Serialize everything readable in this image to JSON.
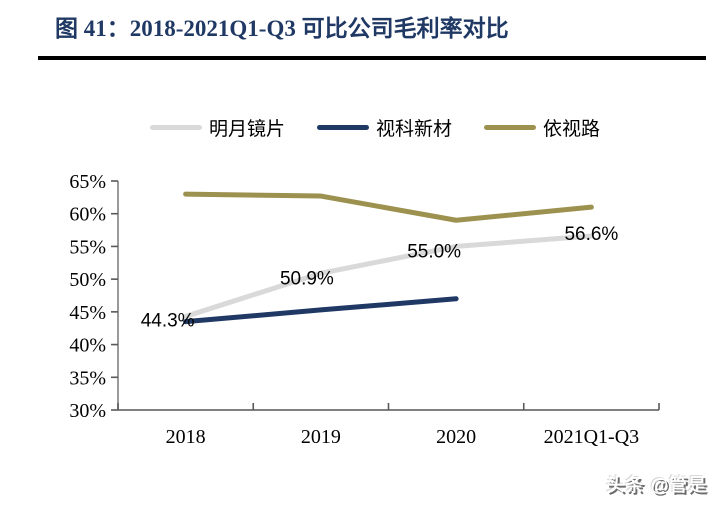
{
  "header": {
    "title": "图 41：2018-2021Q1-Q3 可比公司毛利率对比"
  },
  "watermark": "头条 @管是",
  "colors": {
    "title": "#1f3864",
    "axis_line": "#808080",
    "tick": "#595959",
    "rule": "#000000",
    "label_text": "#000000"
  },
  "chart_data": {
    "type": "line",
    "title": "2018-2021Q1-Q3 可比公司毛利率对比",
    "categories": [
      "2018",
      "2019",
      "2020",
      "2021Q1-Q3"
    ],
    "series": [
      {
        "name": "明月镜片",
        "color": "#d9d9d9",
        "values": [
          44.3,
          50.9,
          55.0,
          56.6
        ],
        "point_labels": [
          "44.3%",
          "50.9%",
          "55.0%",
          "56.6%"
        ]
      },
      {
        "name": "视科新材",
        "color": "#1f3864",
        "values": [
          43.5,
          45.3,
          47.0,
          null
        ],
        "point_labels": []
      },
      {
        "name": "依视路",
        "color": "#9d9150",
        "values": [
          63.0,
          62.7,
          59.0,
          61.0
        ],
        "point_labels": []
      }
    ],
    "ylim": [
      30,
      65
    ],
    "y_step": 5,
    "y_ticks": [
      "65%",
      "60%",
      "55%",
      "50%",
      "45%",
      "40%",
      "35%",
      "30%"
    ],
    "xlabel": "",
    "ylabel": "",
    "grid": false,
    "legend_position": "top"
  }
}
